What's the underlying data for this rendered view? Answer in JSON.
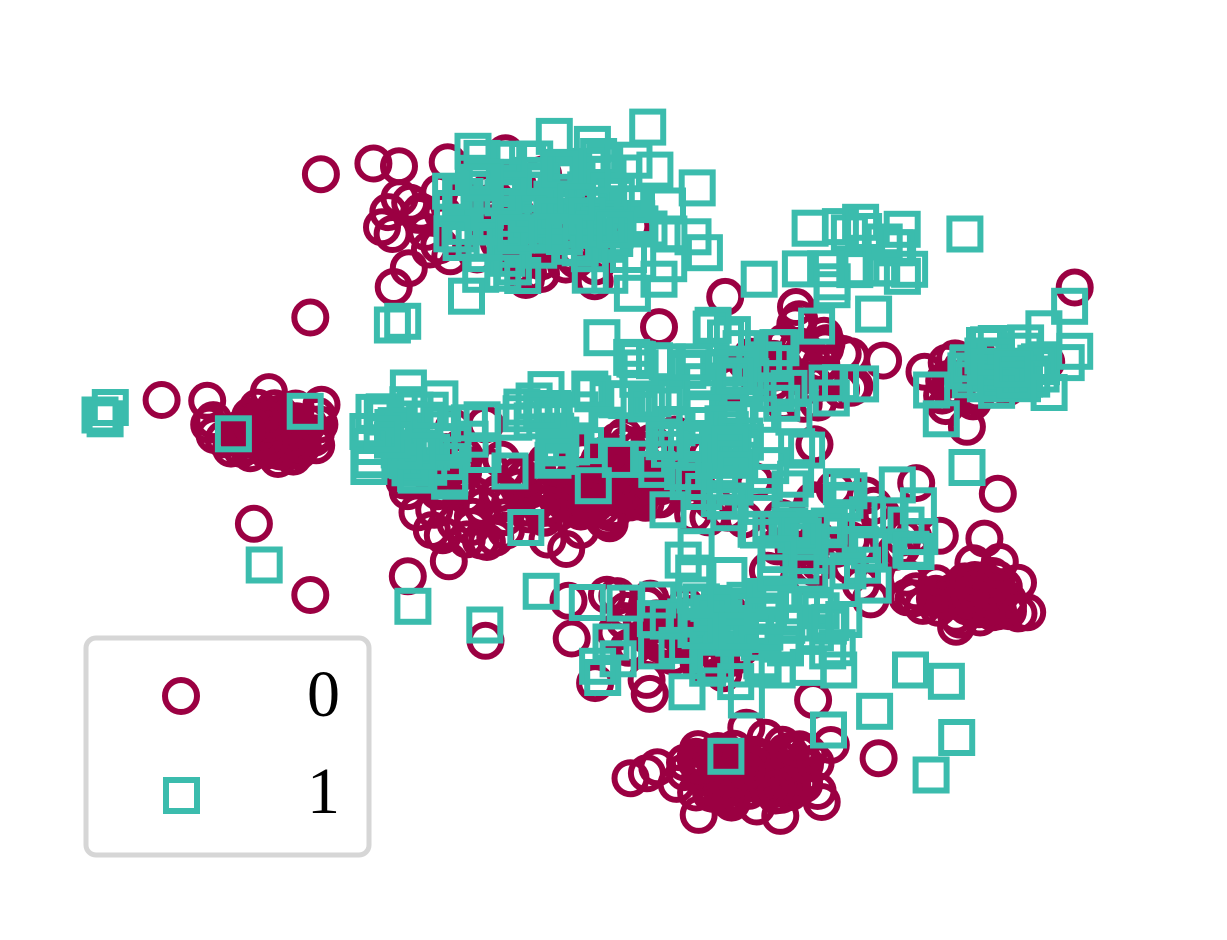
{
  "chart_data": {
    "type": "scatter",
    "title": "",
    "xlabel": "",
    "ylabel": "",
    "axes_visible": false,
    "grid": false,
    "xlim": [
      -10,
      10
    ],
    "ylim": [
      -10,
      10
    ],
    "legend": {
      "position": "lower-left",
      "entries": [
        {
          "label": "0",
          "marker": "circle",
          "color": "#9b0042"
        },
        {
          "label": "1",
          "marker": "square",
          "color": "#3bbcad"
        }
      ]
    },
    "series": [
      {
        "class": "0",
        "marker": "circle",
        "color": "#9b0042",
        "clusters": [
          {
            "cx": -6.7,
            "cy": 1.2,
            "sx": 0.5,
            "sy": 0.4,
            "n": 80
          },
          {
            "cx": 2.6,
            "cy": -7.9,
            "sx": 0.8,
            "sy": 0.45,
            "n": 110
          },
          {
            "cx": 7.1,
            "cy": -3.3,
            "sx": 0.55,
            "sy": 0.35,
            "n": 55
          },
          {
            "cx": 0.4,
            "cy": -0.1,
            "sx": 0.7,
            "sy": 0.6,
            "n": 90
          },
          {
            "cx": -1.6,
            "cy": -0.9,
            "sx": 1.2,
            "sy": 0.5,
            "n": 45
          },
          {
            "cx": -2.1,
            "cy": 6.6,
            "sx": 1.4,
            "sy": 0.9,
            "n": 60
          },
          {
            "cx": 3.6,
            "cy": 3.2,
            "sx": 1.0,
            "sy": 0.7,
            "n": 40
          },
          {
            "cx": 4.6,
            "cy": -1.6,
            "sx": 1.0,
            "sy": 0.8,
            "n": 40
          },
          {
            "cx": 1.0,
            "cy": -4.4,
            "sx": 1.2,
            "sy": 0.7,
            "n": 45
          },
          {
            "cx": 7.0,
            "cy": 2.6,
            "sx": 0.5,
            "sy": 0.4,
            "n": 25
          },
          {
            "cx": -3.2,
            "cy": 0.2,
            "sx": 0.8,
            "sy": 0.6,
            "n": 25
          }
        ],
        "points": [
          [
            -8.8,
            2.0
          ],
          [
            -5.9,
            -3.2
          ],
          [
            -1.7,
            5.2
          ],
          [
            -3.2,
            -2.3
          ],
          [
            -4.0,
            -2.7
          ],
          [
            -5.9,
            4.2
          ],
          [
            7.5,
            -0.5
          ],
          [
            9.0,
            5.0
          ],
          [
            3.9,
            -6.0
          ],
          [
            -7.0,
            -1.3
          ]
        ]
      },
      {
        "class": "1",
        "marker": "square",
        "color": "#3bbcad",
        "clusters": [
          {
            "cx": -1.0,
            "cy": 7.0,
            "sx": 1.2,
            "sy": 0.9,
            "n": 110
          },
          {
            "cx": 7.7,
            "cy": 2.9,
            "sx": 0.4,
            "sy": 0.35,
            "n": 45
          },
          {
            "cx": -3.9,
            "cy": 0.9,
            "sx": 0.6,
            "sy": 0.55,
            "n": 45
          },
          {
            "cx": 2.5,
            "cy": -4.1,
            "sx": 1.1,
            "sy": 0.6,
            "n": 60
          },
          {
            "cx": 2.3,
            "cy": 2.4,
            "sx": 1.5,
            "sy": 1.0,
            "n": 60
          },
          {
            "cx": 4.0,
            "cy": -1.7,
            "sx": 1.3,
            "sy": 0.8,
            "n": 45
          },
          {
            "cx": -0.6,
            "cy": 1.2,
            "sx": 1.5,
            "sy": 0.8,
            "n": 40
          },
          {
            "cx": 4.8,
            "cy": 5.8,
            "sx": 0.8,
            "sy": 0.7,
            "n": 20
          },
          {
            "cx": 2.1,
            "cy": 0.2,
            "sx": 0.7,
            "sy": 0.6,
            "n": 25
          }
        ],
        "points": [
          [
            -10.0,
            1.6
          ],
          [
            -9.8,
            1.8
          ],
          [
            -9.9,
            1.5
          ],
          [
            -6.8,
            -2.4
          ],
          [
            -6.0,
            1.7
          ],
          [
            -4.3,
            4.0
          ],
          [
            -4.1,
            4.1
          ],
          [
            -7.4,
            1.1
          ],
          [
            -4.5,
            1.1
          ],
          [
            -3.9,
            -3.5
          ],
          [
            -2.5,
            -4.0
          ],
          [
            -0.5,
            -3.4
          ],
          [
            -1.4,
            -3.1
          ],
          [
            -1.7,
            -1.4
          ],
          [
            0.1,
            -4.9
          ],
          [
            -0.3,
            -5.1
          ],
          [
            -0.2,
            -5.4
          ],
          [
            1.6,
            -3.2
          ],
          [
            3.2,
            -5.2
          ],
          [
            4.4,
            -5.2
          ],
          [
            5.8,
            -5.2
          ],
          [
            2.6,
            -6.0
          ],
          [
            5.1,
            -6.3
          ],
          [
            2.2,
            -7.5
          ],
          [
            6.7,
            -7.0
          ],
          [
            6.2,
            -8.0
          ],
          [
            4.2,
            -6.8
          ],
          [
            6.5,
            -5.5
          ],
          [
            8.4,
            3.9
          ],
          [
            8.9,
            4.5
          ],
          [
            9.0,
            3.3
          ],
          [
            6.4,
            1.5
          ],
          [
            8.5,
            2.2
          ],
          [
            6.9,
            0.2
          ]
        ]
      }
    ]
  }
}
